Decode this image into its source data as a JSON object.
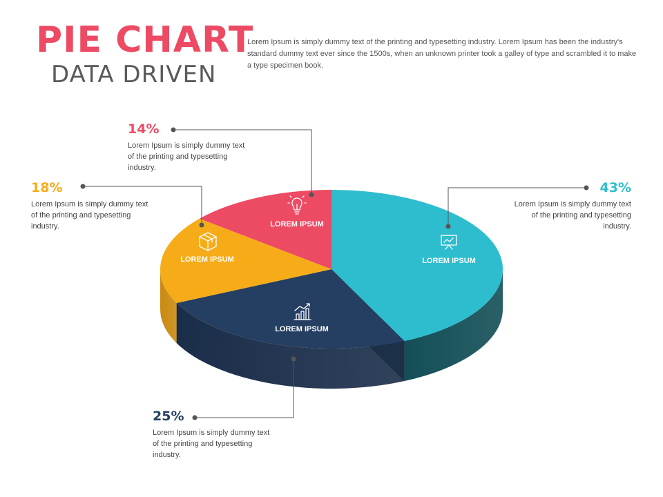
{
  "header": {
    "title": "PIE CHART",
    "subtitle": "DATA DRIVEN",
    "intro": "Lorem Ipsum is simply dummy text of the printing and typesetting industry. Lorem Ipsum has been the industry's standard dummy text ever since the 1500s, when an unknown printer took a galley of type and scrambled it to make a type specimen book."
  },
  "colors": {
    "title": "#ed4a64",
    "subtitle": "#5a5a5a",
    "connector": "#555555"
  },
  "chart_data": {
    "type": "pie",
    "title": "PIE CHART",
    "subtitle": "DATA DRIVEN",
    "style": "3d",
    "slices": [
      {
        "label": "LOREM IPSUM",
        "percent": "43%",
        "value": 43,
        "color": "#2ebdce",
        "side_color": "#134e57",
        "icon": "presentation-board-icon",
        "description": "Lorem Ipsum is simply dummy text of the printing and typesetting industry."
      },
      {
        "label": "LOREM IPSUM",
        "percent": "25%",
        "value": 25,
        "color": "#253f63",
        "side_color": "#1a2d49",
        "icon": "bar-chart-growth-icon",
        "description": "Lorem Ipsum is simply dummy text of the printing and typesetting industry."
      },
      {
        "label": "LOREM IPSUM",
        "percent": "18%",
        "value": 18,
        "color": "#f6ac19",
        "side_color": "#c98a10",
        "icon": "box-package-icon",
        "description": "Lorem Ipsum is simply dummy text of the printing and typesetting industry."
      },
      {
        "label": "LOREM IPSUM",
        "percent": "14%",
        "value": 14,
        "color": "#ed4a64",
        "side_color": "#b83a4f",
        "icon": "lightbulb-icon",
        "description": "Lorem Ipsum is simply dummy text of the printing and typesetting industry."
      }
    ]
  }
}
